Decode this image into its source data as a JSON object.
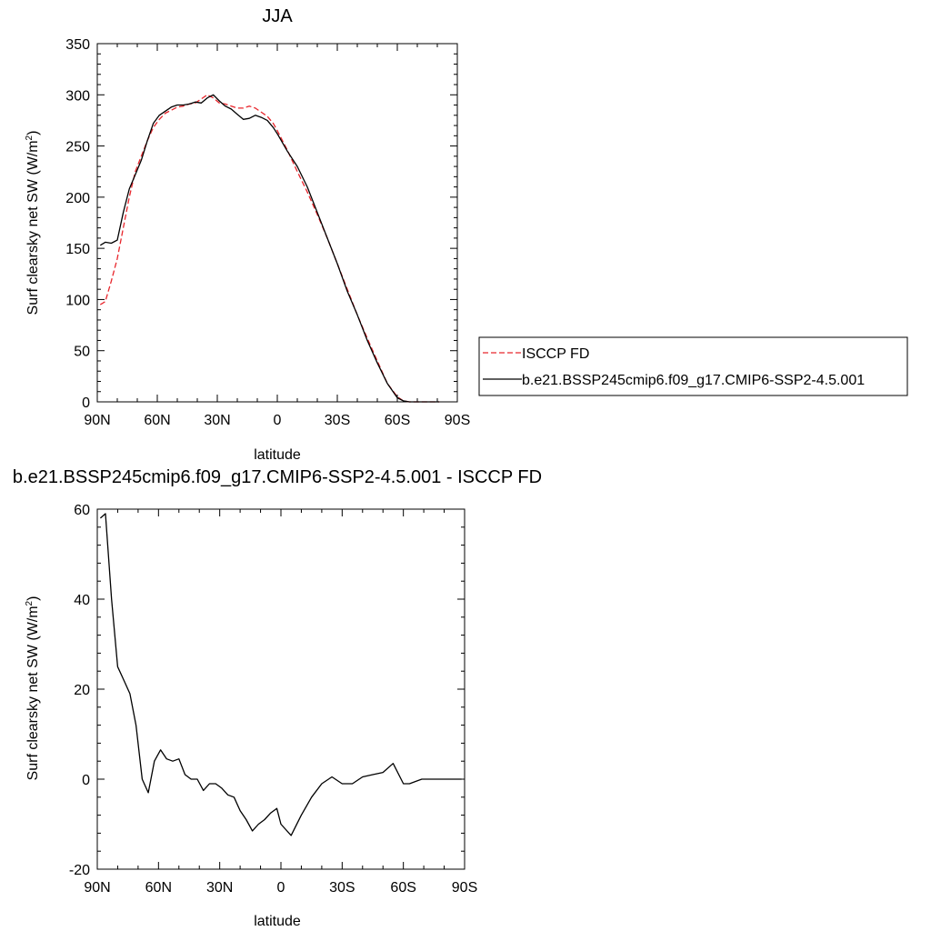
{
  "chart_data": [
    {
      "type": "line",
      "title": "JJA",
      "xlabel": "latitude",
      "ylabel": "Surf clearsky net SW (W/m",
      "ylabel_sup": "2",
      "ylabel_close": ")",
      "xlim": [
        90,
        -90
      ],
      "ylim": [
        0,
        350
      ],
      "x_ticks": [
        90,
        60,
        30,
        0,
        -30,
        -60,
        -90
      ],
      "x_tick_labels": [
        "90N",
        "60N",
        "30N",
        "0",
        "30S",
        "60S",
        "90S"
      ],
      "y_ticks": [
        0,
        50,
        100,
        150,
        200,
        250,
        300,
        350
      ],
      "y_tick_labels": [
        "0",
        "50",
        "100",
        "150",
        "200",
        "250",
        "300",
        "350"
      ],
      "legend": "right",
      "series": [
        {
          "name": "ISCCP FD",
          "color": "#e8262c",
          "dash": "dashed",
          "x": [
            88.5,
            86,
            83,
            80,
            77,
            74,
            71,
            68,
            65,
            62,
            59,
            56,
            53,
            50,
            47,
            44,
            41,
            38,
            35,
            32,
            29,
            26,
            23,
            20,
            17,
            14,
            11,
            8,
            5,
            2,
            0,
            -5,
            -10,
            -15,
            -20,
            -25,
            -30,
            -35,
            -40,
            -45,
            -50,
            -55,
            -60,
            -63,
            -66,
            -69,
            -72,
            -75,
            -78,
            -81
          ],
          "y": [
            95,
            98,
            118,
            140,
            170,
            200,
            225,
            240,
            255,
            268,
            276,
            282,
            285,
            288,
            289,
            291,
            292,
            296,
            300,
            297,
            292,
            291,
            289,
            287,
            287,
            289,
            287,
            283,
            279,
            272,
            265,
            246,
            225,
            205,
            183,
            160,
            135,
            110,
            85,
            62,
            40,
            18,
            5,
            1,
            0,
            0,
            0,
            0,
            0,
            0
          ]
        },
        {
          "name": "b.e21.BSSP245cmip6.f09_g17.CMIP6-SSP2-4.5.001",
          "color": "#000000",
          "dash": "solid",
          "x": [
            88.5,
            86,
            83,
            80,
            77,
            74,
            71,
            68,
            65,
            62,
            59,
            56,
            53,
            50,
            47,
            44,
            41,
            38,
            35,
            32,
            29,
            26,
            23,
            20,
            17,
            14,
            11,
            8,
            5,
            2,
            0,
            -5,
            -10,
            -15,
            -20,
            -25,
            -30,
            -35,
            -40,
            -45,
            -50,
            -55,
            -60,
            -63,
            -66,
            -69,
            -72,
            -75,
            -78,
            -81
          ],
          "y": [
            153,
            156,
            155,
            158,
            185,
            208,
            222,
            236,
            255,
            272,
            280,
            284,
            288,
            290,
            290,
            291,
            293,
            292,
            297,
            300,
            294,
            289,
            286,
            281,
            276,
            277,
            280,
            278,
            275,
            268,
            262,
            245,
            230,
            210,
            185,
            160,
            135,
            108,
            85,
            60,
            38,
            18,
            4,
            1,
            0,
            0,
            0,
            0,
            0,
            0
          ]
        }
      ]
    },
    {
      "type": "line",
      "title": "b.e21.BSSP245cmip6.f09_g17.CMIP6-SSP2-4.5.001 - ISCCP FD",
      "xlabel": "latitude",
      "ylabel": "Surf clearsky net SW (W/m",
      "ylabel_sup": "2",
      "ylabel_close": ")",
      "xlim": [
        90,
        -90
      ],
      "ylim": [
        -20,
        60
      ],
      "x_ticks": [
        90,
        60,
        30,
        0,
        -30,
        -60,
        -90
      ],
      "x_tick_labels": [
        "90N",
        "60N",
        "30N",
        "0",
        "30S",
        "60S",
        "90S"
      ],
      "y_ticks": [
        -20,
        0,
        20,
        40,
        60
      ],
      "y_tick_labels": [
        "-20",
        "0",
        "20",
        "40",
        "60"
      ],
      "series": [
        {
          "color": "#000000",
          "dash": "solid",
          "x": [
            88.5,
            86,
            83,
            80,
            77,
            74,
            71,
            68,
            65,
            62,
            59,
            56,
            53,
            50,
            47,
            44,
            41,
            38,
            35,
            32,
            29,
            26,
            23,
            20,
            17,
            14,
            11,
            8,
            5,
            2,
            0,
            -5,
            -10,
            -15,
            -20,
            -25,
            -30,
            -35,
            -40,
            -45,
            -50,
            -55,
            -60,
            -63,
            -66,
            -69,
            -72,
            -75,
            -78,
            -81,
            -85,
            -88.5
          ],
          "y": [
            58,
            59,
            40,
            25,
            22,
            19,
            12,
            0,
            -3,
            4,
            6.5,
            4.5,
            4,
            4.5,
            1,
            0,
            0,
            -2.5,
            -1,
            -1,
            -2,
            -3.5,
            -4,
            -7,
            -9,
            -11.5,
            -10,
            -9,
            -7.5,
            -6.5,
            -10,
            -12.5,
            -8,
            -4,
            -1,
            0.5,
            -1,
            -1,
            0.5,
            1,
            1.5,
            3.5,
            -1,
            -1,
            -0.5,
            0,
            0,
            0,
            0,
            0,
            0,
            0
          ]
        }
      ]
    }
  ]
}
